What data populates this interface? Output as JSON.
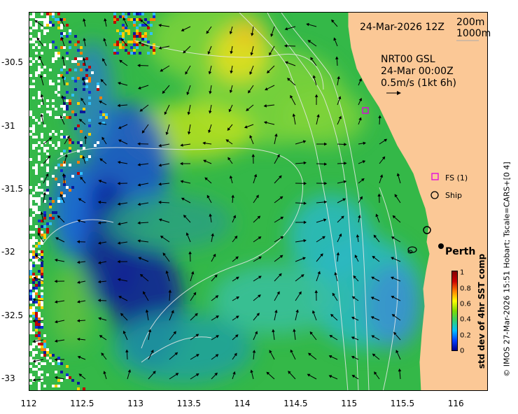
{
  "map": {
    "date_label": "24-Mar-2026 12Z",
    "contour_labels": [
      "200m",
      "1000m"
    ],
    "current_title": "NRT00 GSL",
    "current_time": "24-Mar 00:00Z",
    "current_scale": "0.5m/s (1kt 6h)",
    "city_label": "Perth",
    "legend": [
      {
        "symbol": "magenta-square-icon",
        "label": "FS (1)"
      },
      {
        "symbol": "circle-icon",
        "label": "Ship"
      }
    ]
  },
  "axes": {
    "x_ticks": [
      "112",
      "112.5",
      "113",
      "113.5",
      "114",
      "114.5",
      "115",
      "115.5",
      "116"
    ],
    "y_ticks": [
      "-30.5",
      "-31",
      "-31.5",
      "-32",
      "-32.5",
      "-33"
    ],
    "x_range": [
      112,
      116.3
    ],
    "y_range": [
      -33.1,
      -30.1
    ]
  },
  "colorbar": {
    "label": "std dev of 4hr SST comp",
    "ticks": [
      "1",
      "0.8",
      "0.6",
      "0.4",
      "0.2",
      "0"
    ],
    "colors": [
      "#00008b",
      "#0040ff",
      "#00c0ff",
      "#30d070",
      "#7fdb00",
      "#ffff00",
      "#ff8000",
      "#cc0000",
      "#800000"
    ]
  },
  "credit": "© IMOS 27-Mar-2026 15:51 Hobart; Tscale=CARS+[0 4]",
  "colors": {
    "land": "#fbc896",
    "sea_main": "#34b848",
    "sea_light": "#7fd43a",
    "sea_cyan": "#2ab8c4",
    "deep_blue": "#0a1a9a",
    "contour": "#e8e8e8",
    "fs_marker": "#e000e0"
  }
}
